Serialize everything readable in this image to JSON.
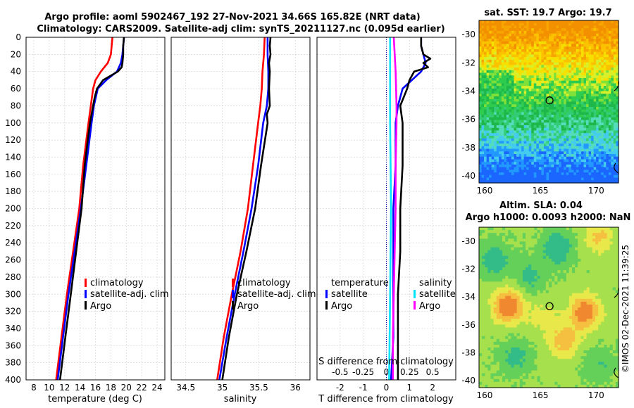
{
  "titles": {
    "line1": "Argo profile: aoml 5902467_192 27-Nov-2021 34.66S 165.82E (NRT data)",
    "line2": "Climatology: CARS2009. Satellite-adj clim: synTS_20211127.nc (0.095d earlier)",
    "sst": "sat. SST: 19.7 Argo: 19.7",
    "sla1": "Altim. SLA: 0.04",
    "sla2": "Argo h1000: 0.0093 h2000: NaN"
  },
  "stamp": "©IMOS 02-Dec-2021 11:39:25",
  "colors": {
    "climatology": "#ff0000",
    "satellite": "#0000ff",
    "argo": "#000000",
    "sal_satellite": "#00e5ff",
    "sal_argo": "#ff00ff"
  },
  "chart_data": [
    {
      "type": "line",
      "name": "temperature-profile",
      "xlabel": "temperature (deg C)",
      "ylabel": "depth",
      "xlim": [
        7,
        25
      ],
      "ylim": [
        0,
        400
      ],
      "x_ticks": [
        "8",
        "10",
        "12",
        "14",
        "16",
        "18",
        "20",
        "22",
        "24"
      ],
      "x_tick_values": [
        8,
        10,
        12,
        14,
        16,
        18,
        20,
        22,
        24
      ],
      "y_ticks": [
        "0",
        "20",
        "40",
        "60",
        "80",
        "100",
        "120",
        "140",
        "160",
        "180",
        "200",
        "220",
        "240",
        "260",
        "280",
        "300",
        "320",
        "340",
        "360",
        "380",
        "400"
      ],
      "y_tick_values": [
        0,
        20,
        40,
        60,
        80,
        100,
        120,
        140,
        160,
        180,
        200,
        220,
        240,
        260,
        280,
        300,
        320,
        340,
        360,
        380,
        400
      ],
      "legend": [
        "climatology",
        "satellite-adj. clim",
        "Argo"
      ],
      "series": [
        {
          "name": "climatology",
          "depth": [
            0,
            10,
            20,
            30,
            40,
            50,
            60,
            80,
            100,
            150,
            200,
            250,
            300,
            350,
            400
          ],
          "values": [
            18.2,
            18.1,
            18.0,
            17.6,
            16.7,
            16.0,
            15.7,
            15.4,
            15.1,
            14.4,
            13.9,
            13.1,
            12.3,
            11.6,
            10.9
          ]
        },
        {
          "name": "satellite-adj. clim",
          "depth": [
            0,
            10,
            20,
            30,
            40,
            50,
            60,
            80,
            100,
            150,
            200,
            250,
            300,
            350,
            400
          ],
          "values": [
            19.7,
            19.6,
            19.5,
            19.3,
            18.8,
            17.4,
            16.3,
            15.8,
            15.5,
            14.8,
            14.1,
            13.3,
            12.5,
            11.8,
            11.1
          ]
        },
        {
          "name": "Argo",
          "depth": [
            0,
            10,
            20,
            30,
            35,
            40,
            50,
            60,
            70,
            80,
            100,
            120,
            150,
            200,
            250,
            300,
            350,
            400
          ],
          "values": [
            19.7,
            19.6,
            19.6,
            19.5,
            19.4,
            18.9,
            17.0,
            16.2,
            15.9,
            15.7,
            15.3,
            15.0,
            14.6,
            14.2,
            13.5,
            12.8,
            12.1,
            11.4
          ]
        }
      ]
    },
    {
      "type": "line",
      "name": "salinity-profile",
      "xlabel": "salinity",
      "ylabel": "depth",
      "xlim": [
        34.3,
        36.2
      ],
      "ylim": [
        0,
        400
      ],
      "x_ticks": [
        "34.5",
        "35",
        "35.5",
        "36"
      ],
      "x_tick_values": [
        34.5,
        35,
        35.5,
        36
      ],
      "legend": [
        "climatology",
        "satellite-adj. clim",
        "Argo"
      ],
      "series": [
        {
          "name": "climatology",
          "depth": [
            0,
            20,
            40,
            60,
            80,
            100,
            150,
            200,
            250,
            300,
            350,
            400
          ],
          "values": [
            35.58,
            35.57,
            35.55,
            35.54,
            35.52,
            35.49,
            35.42,
            35.35,
            35.25,
            35.13,
            35.02,
            34.93
          ]
        },
        {
          "name": "satellite-adj. clim",
          "depth": [
            0,
            20,
            40,
            60,
            80,
            100,
            150,
            200,
            250,
            300,
            350,
            400
          ],
          "values": [
            35.62,
            35.62,
            35.63,
            35.63,
            35.61,
            35.56,
            35.49,
            35.4,
            35.29,
            35.17,
            35.06,
            34.96
          ]
        },
        {
          "name": "Argo",
          "depth": [
            0,
            10,
            20,
            30,
            40,
            60,
            80,
            90,
            100,
            150,
            200,
            250,
            300,
            350,
            400
          ],
          "values": [
            35.66,
            35.65,
            35.66,
            35.64,
            35.65,
            35.64,
            35.65,
            35.61,
            35.62,
            35.53,
            35.45,
            35.33,
            35.2,
            35.09,
            35.0
          ]
        }
      ]
    },
    {
      "type": "line",
      "name": "difference-profile",
      "xlabel": "T difference from climatology",
      "xlabel_top": "S difference from climatology",
      "ylabel": "depth",
      "xlim": [
        -3,
        3
      ],
      "ylim": [
        0,
        400
      ],
      "x_ticks": [
        "-2",
        "-1",
        "0",
        "1",
        "2"
      ],
      "x_tick_values": [
        -2,
        -1,
        0,
        1,
        2
      ],
      "s_ticks": [
        "-0.5",
        "-0.25",
        "0",
        "0.25",
        "0.5"
      ],
      "s_tick_values": [
        -0.5,
        -0.25,
        0,
        0.25,
        0.5
      ],
      "legend_t_title": "temperature",
      "legend_t": [
        "satellite",
        "Argo"
      ],
      "legend_s_title": "salinity",
      "legend_s": [
        "satellite",
        "Argo"
      ],
      "series": [
        {
          "name": "T satellite",
          "depth": [
            0,
            10,
            20,
            30,
            40,
            60,
            80,
            100,
            150,
            200,
            250,
            300,
            350,
            400
          ],
          "values": [
            1.5,
            1.5,
            1.6,
            1.7,
            1.5,
            0.7,
            0.5,
            0.4,
            0.4,
            0.3,
            0.3,
            0.3,
            0.3,
            0.2
          ]
        },
        {
          "name": "T Argo",
          "depth": [
            0,
            10,
            20,
            25,
            30,
            35,
            40,
            50,
            60,
            80,
            100,
            150,
            200,
            250,
            300,
            350,
            400
          ],
          "values": [
            1.5,
            1.5,
            1.6,
            1.9,
            1.6,
            1.8,
            1.2,
            1.0,
            0.9,
            0.6,
            0.7,
            0.7,
            0.6,
            0.6,
            0.5,
            0.5,
            0.5
          ]
        },
        {
          "name": "S satellite",
          "depth": [
            0,
            100,
            200,
            300,
            400
          ],
          "values": [
            0.04,
            0.04,
            0.05,
            0.04,
            0.03
          ]
        },
        {
          "name": "S Argo",
          "depth": [
            0,
            20,
            40,
            80,
            100,
            150,
            200,
            250,
            300,
            350,
            400
          ],
          "values": [
            0.08,
            0.09,
            0.1,
            0.11,
            0.11,
            0.1,
            0.1,
            0.09,
            0.08,
            0.07,
            0.07
          ]
        }
      ]
    },
    {
      "type": "heatmap",
      "name": "sst-map",
      "title": "sat. SST: 19.7 Argo: 19.7",
      "xlim": [
        159.5,
        172
      ],
      "ylim": [
        -40.5,
        -29
      ],
      "x_ticks": [
        "160",
        "165",
        "170"
      ],
      "x_tick_values": [
        160,
        165,
        170
      ],
      "y_ticks": [
        "-30",
        "-32",
        "-34",
        "-36",
        "-38",
        "-40"
      ],
      "y_tick_values": [
        -30,
        -32,
        -34,
        -36,
        -38,
        -40
      ],
      "float_lon": 165.82,
      "float_lat": -34.66
    },
    {
      "type": "heatmap",
      "name": "sla-map",
      "title": "Altim. SLA: 0.04",
      "subtitle": "Argo h1000: 0.0093 h2000: NaN",
      "xlim": [
        159.5,
        172
      ],
      "ylim": [
        -40.5,
        -29
      ],
      "x_ticks": [
        "160",
        "165",
        "170"
      ],
      "x_tick_values": [
        160,
        165,
        170
      ],
      "y_ticks": [
        "-30",
        "-32",
        "-34",
        "-36",
        "-38",
        "-40"
      ],
      "y_tick_values": [
        -30,
        -32,
        -34,
        -36,
        -38,
        -40
      ],
      "float_lon": 165.82,
      "float_lat": -34.66
    }
  ]
}
